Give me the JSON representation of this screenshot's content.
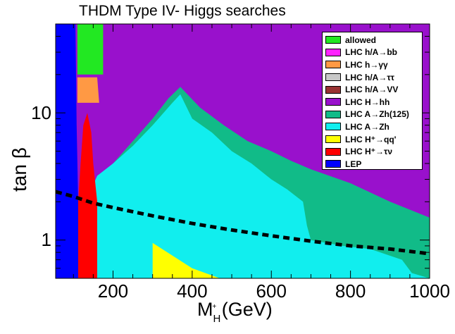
{
  "chart_data": {
    "type": "scatter",
    "title": "THDM Type IV- Higgs searches",
    "xlabel": "M",
    "xlabel_sub": "H",
    "xlabel_sup": "+",
    "xlabel_unit": "(GeV)",
    "ylabel": "tan β",
    "xlim": [
      55,
      1000
    ],
    "ylim": [
      0.5,
      50
    ],
    "yscale": "log",
    "xticks": [
      200,
      400,
      600,
      800,
      1000
    ],
    "xtick_labels": [
      "200",
      "400",
      "600",
      "800",
      "1000"
    ],
    "yticks": [
      1,
      10
    ],
    "ytick_labels": [
      "1",
      "10"
    ],
    "legend": [
      {
        "label": "allowed",
        "color": "#22e822"
      },
      {
        "label": "LHC h/A→bb",
        "color": "#ff22ff"
      },
      {
        "label": "LHC h→γγ",
        "color": "#ff9944"
      },
      {
        "label": "LHC h/A→ττ",
        "color": "#c8c8c8"
      },
      {
        "label": "LHC h/A→VV",
        "color": "#993333"
      },
      {
        "label": "LHC H→hh",
        "color": "#9911cc"
      },
      {
        "label": "LHC A→Zh(125)",
        "color": "#11bb88"
      },
      {
        "label": "LHC A→Zh",
        "color": "#11eeee"
      },
      {
        "label": "LHC H⁺→qq'",
        "color": "#ffff00"
      },
      {
        "label": "LHC H⁺→τν",
        "color": "#ff0000"
      },
      {
        "label": "LEP",
        "color": "#0000ff"
      }
    ],
    "regions": [
      {
        "name": "LHC H→hh",
        "color": "#9911cc",
        "points": [
          [
            55,
            0.5
          ],
          [
            1000,
            0.5
          ],
          [
            1000,
            50
          ],
          [
            55,
            50
          ]
        ]
      },
      {
        "name": "LHC A→Zh(125)",
        "color": "#11bb88",
        "points": [
          [
            160,
            0.5
          ],
          [
            1000,
            0.5
          ],
          [
            1000,
            1.5
          ],
          [
            900,
            2.0
          ],
          [
            800,
            2.8
          ],
          [
            700,
            3.6
          ],
          [
            650,
            4.2
          ],
          [
            600,
            5.0
          ],
          [
            540,
            6.0
          ],
          [
            480,
            8.0
          ],
          [
            420,
            11
          ],
          [
            370,
            16
          ],
          [
            340,
            13
          ],
          [
            300,
            9
          ],
          [
            250,
            6
          ],
          [
            200,
            4
          ],
          [
            160,
            3
          ]
        ]
      },
      {
        "name": "LHC A→Zh",
        "color": "#11eeee",
        "points": [
          [
            145,
            0.5
          ],
          [
            1000,
            0.5
          ],
          [
            955,
            0.55
          ],
          [
            930,
            0.7
          ],
          [
            850,
            0.85
          ],
          [
            780,
            0.9
          ],
          [
            700,
            1.0
          ],
          [
            690,
            1.3
          ],
          [
            680,
            2.0
          ],
          [
            640,
            2.5
          ],
          [
            600,
            3.0
          ],
          [
            550,
            4.0
          ],
          [
            500,
            5.0
          ],
          [
            450,
            7.0
          ],
          [
            400,
            9.0
          ],
          [
            370,
            14
          ],
          [
            350,
            12
          ],
          [
            300,
            8
          ],
          [
            250,
            5.5
          ],
          [
            200,
            4
          ],
          [
            160,
            3.2
          ],
          [
            145,
            2.5
          ]
        ]
      },
      {
        "name": "LHC H⁺→qq'",
        "color": "#ffff00",
        "points": [
          [
            300,
            0.5
          ],
          [
            470,
            0.5
          ],
          [
            400,
            0.6
          ],
          [
            300,
            0.95
          ]
        ]
      },
      {
        "name": "LHC H⁺→qq'",
        "color": "#ffff00",
        "points": [
          [
            120,
            0.5
          ],
          [
            135,
            0.5
          ],
          [
            135,
            0.58
          ],
          [
            120,
            0.58
          ]
        ]
      },
      {
        "name": "LHC H⁺→τν",
        "color": "#ff0000",
        "points": [
          [
            105,
            0.5
          ],
          [
            160,
            0.5
          ],
          [
            160,
            2.0
          ],
          [
            150,
            4.0
          ],
          [
            145,
            7.0
          ],
          [
            135,
            10
          ],
          [
            125,
            8.0
          ],
          [
            118,
            4.0
          ],
          [
            112,
            2.0
          ],
          [
            110,
            1.0
          ]
        ]
      },
      {
        "name": "LEP",
        "color": "#0000ff",
        "points": [
          [
            55,
            0.5
          ],
          [
            112,
            0.5
          ],
          [
            112,
            2.0
          ],
          [
            108,
            8.0
          ],
          [
            105,
            50
          ],
          [
            55,
            50
          ]
        ]
      },
      {
        "name": "allowed",
        "color": "#22e822",
        "points": [
          [
            110,
            20
          ],
          [
            175,
            20
          ],
          [
            175,
            50
          ],
          [
            110,
            50
          ]
        ]
      },
      {
        "name": "LHC h→γγ",
        "color": "#ff9944",
        "points": [
          [
            110,
            12
          ],
          [
            165,
            12
          ],
          [
            160,
            19
          ],
          [
            110,
            19
          ]
        ]
      }
    ],
    "reference_line": {
      "style": "dashed",
      "color": "#000000",
      "x": [
        55,
        100,
        150,
        200,
        300,
        400,
        500,
        600,
        700,
        800,
        900,
        1000
      ],
      "y": [
        2.4,
        2.2,
        1.95,
        1.8,
        1.55,
        1.35,
        1.2,
        1.08,
        0.98,
        0.9,
        0.85,
        0.78
      ]
    }
  }
}
